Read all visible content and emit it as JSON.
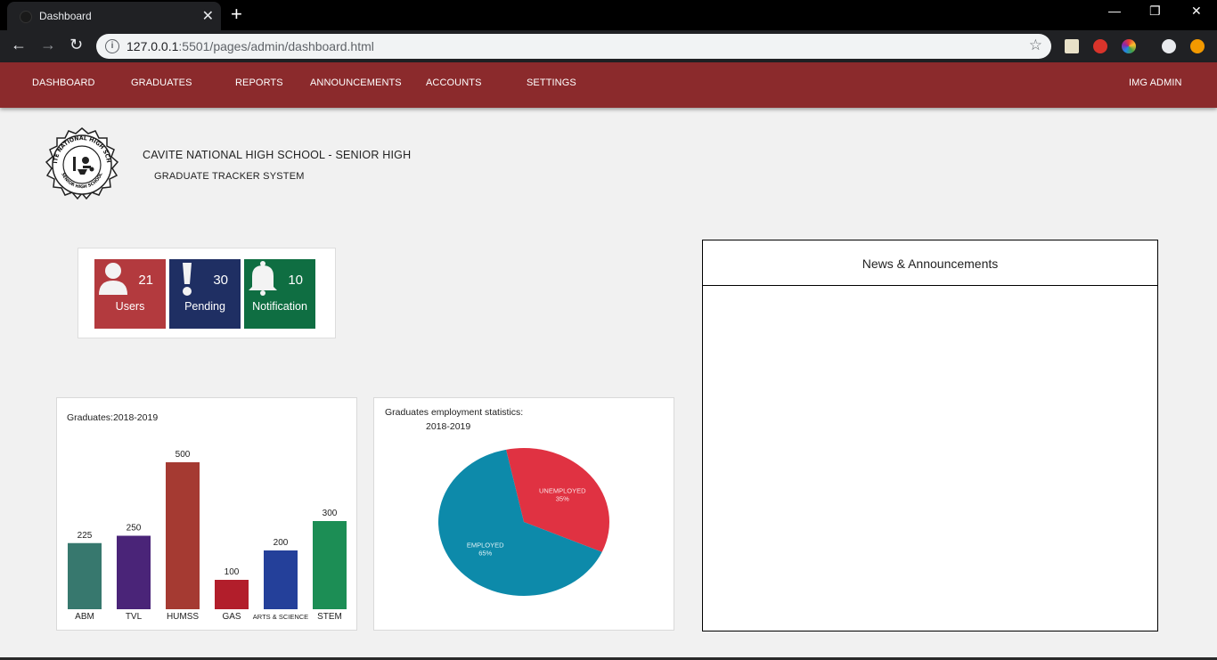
{
  "browser": {
    "tab_title": "Dashboard",
    "url_host": "127.0.0.1",
    "url_rest": ":5501/pages/admin/dashboard.html"
  },
  "nav": {
    "items": [
      "DASHBOARD",
      "GRADUATES",
      "REPORTS",
      "ANNOUNCEMENTS",
      "ACCOUNTS",
      "SETTINGS"
    ],
    "user": "IMG ADMIN",
    "color": "#8b2a2c"
  },
  "header": {
    "school": "CAVITE NATIONAL HIGH SCHOOL - SENIOR HIGH",
    "system": "GRADUATE TRACKER SYSTEM",
    "logo_top": "CAVITE NATIONAL HIGH SCHOOL",
    "logo_bottom": "SENIOR HIGH SCHOOL"
  },
  "stats": [
    {
      "label": "Users",
      "count": "21",
      "icon": "user-icon",
      "color": "#b33a3e"
    },
    {
      "label": "Pending",
      "count": "30",
      "icon": "exclamation-icon",
      "color": "#1f2f63"
    },
    {
      "label": "Notification",
      "count": "10",
      "icon": "bell-icon",
      "color": "#0f6e42"
    }
  ],
  "bar_chart": {
    "title": "Graduates:2018-2019",
    "chart_data": {
      "type": "bar",
      "categories": [
        "ABM",
        "TVL",
        "HUMSS",
        "GAS",
        "ARTS & SCIENCE",
        "STEM"
      ],
      "values": [
        225,
        250,
        500,
        100,
        200,
        300
      ],
      "colors": [
        "#37786e",
        "#4a2478",
        "#a53a32",
        "#b21e2b",
        "#24409a",
        "#1c8e55"
      ],
      "ylim": [
        0,
        500
      ]
    }
  },
  "pie_chart": {
    "title": "Graduates employment statistics:",
    "subtitle": "2018-2019",
    "chart_data": {
      "type": "pie",
      "slices": [
        {
          "label": "EMPLOYED",
          "pct": "65%",
          "value": 65,
          "color": "#0d8aaa"
        },
        {
          "label": "UNEMPLOYED",
          "pct": "35%",
          "value": 35,
          "color": "#e03242"
        }
      ]
    }
  },
  "news": {
    "title": "News & Announcements"
  }
}
